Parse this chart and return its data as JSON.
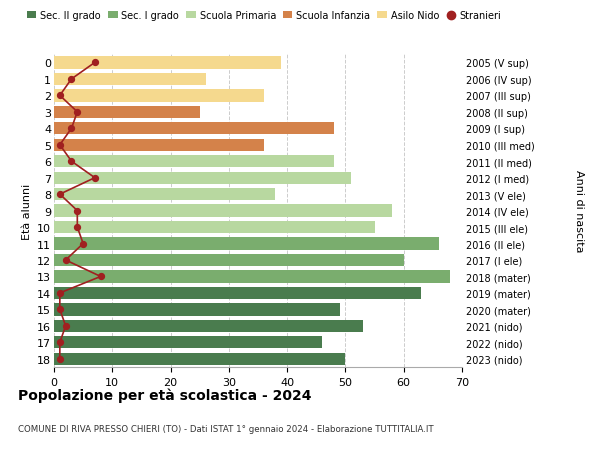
{
  "ages": [
    18,
    17,
    16,
    15,
    14,
    13,
    12,
    11,
    10,
    9,
    8,
    7,
    6,
    5,
    4,
    3,
    2,
    1,
    0
  ],
  "right_labels": [
    "2005 (V sup)",
    "2006 (IV sup)",
    "2007 (III sup)",
    "2008 (II sup)",
    "2009 (I sup)",
    "2010 (III med)",
    "2011 (II med)",
    "2012 (I med)",
    "2013 (V ele)",
    "2014 (IV ele)",
    "2015 (III ele)",
    "2016 (II ele)",
    "2017 (I ele)",
    "2018 (mater)",
    "2019 (mater)",
    "2020 (mater)",
    "2021 (nido)",
    "2022 (nido)",
    "2023 (nido)"
  ],
  "bar_values": [
    50,
    46,
    53,
    49,
    63,
    68,
    60,
    66,
    55,
    58,
    38,
    51,
    48,
    36,
    48,
    25,
    36,
    26,
    39
  ],
  "stranieri_values": [
    1,
    1,
    2,
    1,
    1,
    8,
    2,
    5,
    4,
    4,
    1,
    7,
    3,
    1,
    3,
    4,
    1,
    3,
    7
  ],
  "bar_colors": [
    "#4a7c4e",
    "#4a7c4e",
    "#4a7c4e",
    "#4a7c4e",
    "#4a7c4e",
    "#7aad6e",
    "#7aad6e",
    "#7aad6e",
    "#b8d8a0",
    "#b8d8a0",
    "#b8d8a0",
    "#b8d8a0",
    "#b8d8a0",
    "#d4824a",
    "#d4824a",
    "#d4824a",
    "#f5d98e",
    "#f5d98e",
    "#f5d98e"
  ],
  "legend_labels": [
    "Sec. II grado",
    "Sec. I grado",
    "Scuola Primaria",
    "Scuola Infanzia",
    "Asilo Nido",
    "Stranieri"
  ],
  "legend_colors": [
    "#4a7c4e",
    "#7aad6e",
    "#b8d8a0",
    "#d4824a",
    "#f5d98e",
    "#a02020"
  ],
  "title": "Popolazione per età scolastica - 2024",
  "subtitle": "COMUNE DI RIVA PRESSO CHIERI (TO) - Dati ISTAT 1° gennaio 2024 - Elaborazione TUTTITALIA.IT",
  "ylabel_left": "Età alunni",
  "ylabel_right": "Anni di nascita",
  "xlim": [
    0,
    70
  ],
  "xticks": [
    0,
    10,
    20,
    30,
    40,
    50,
    60,
    70
  ],
  "stranieri_color": "#a02020",
  "background_color": "#ffffff",
  "grid_color": "#cccccc"
}
